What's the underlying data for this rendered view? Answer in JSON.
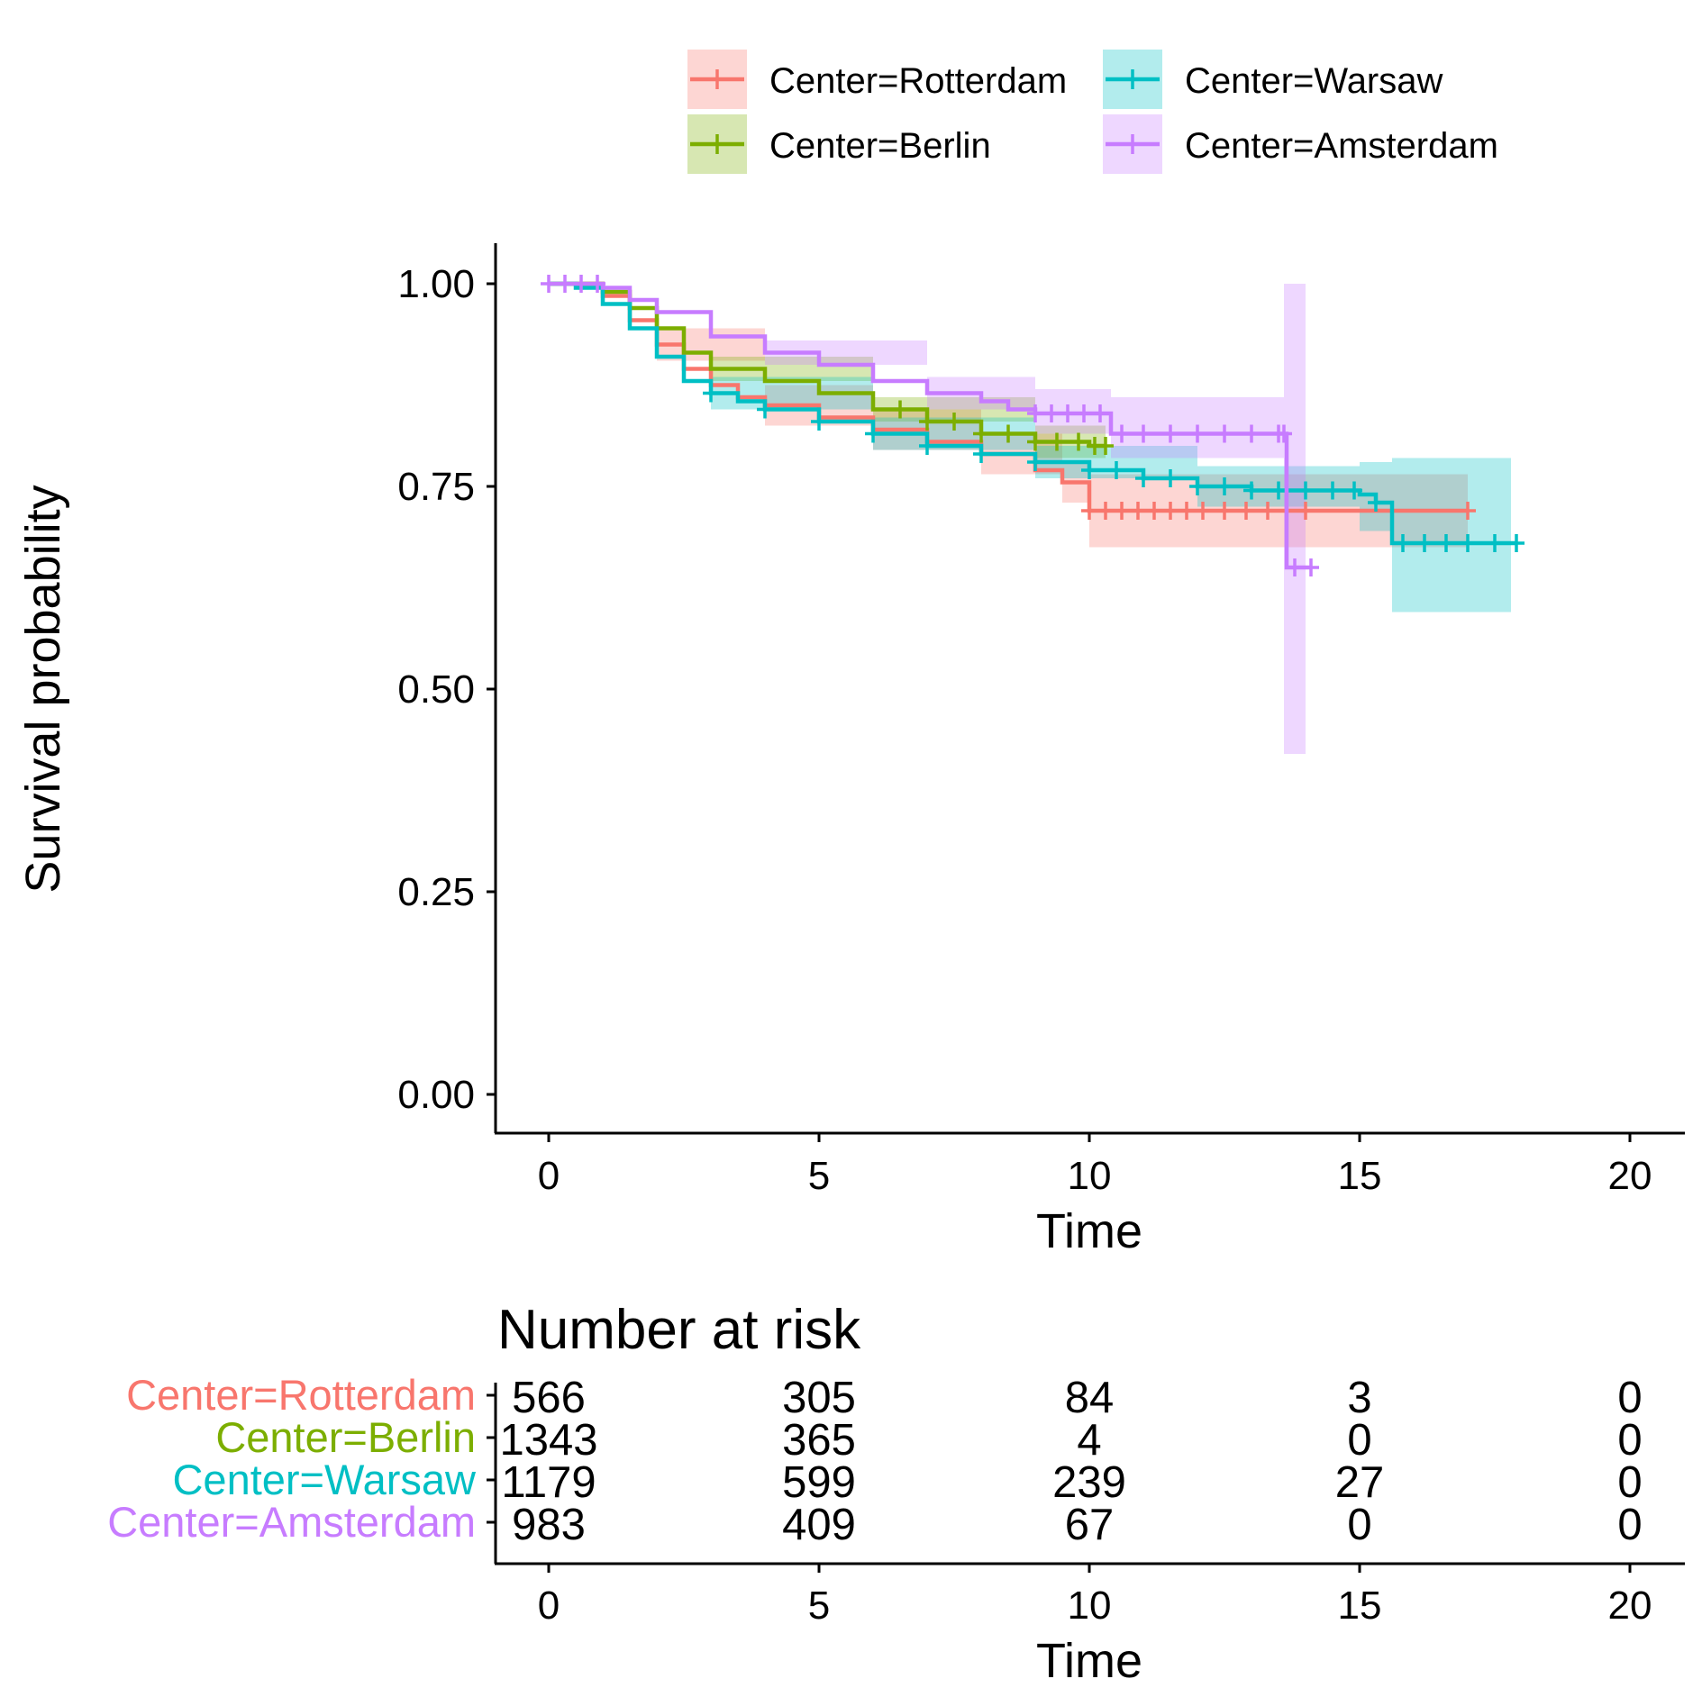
{
  "chart_data": [
    {
      "type": "line",
      "subtype": "kaplan-meier-step",
      "xlabel": "Time",
      "ylabel": "Survival probability",
      "xlim": [
        0,
        20
      ],
      "ylim": [
        0,
        1
      ],
      "x_ticks": [
        "0",
        "5",
        "10",
        "15",
        "20"
      ],
      "y_ticks": [
        "0.00",
        "0.25",
        "0.50",
        "0.75",
        "1.00"
      ],
      "grid": false,
      "legend": {
        "placement": "top",
        "entries": [
          "Center=Rotterdam",
          "Center=Warsaw",
          "Center=Berlin",
          "Center=Amsterdam"
        ]
      },
      "series": [
        {
          "name": "Center=Rotterdam",
          "color": "#F8766D",
          "points": [
            [
              0,
              1.0
            ],
            [
              0.5,
              1.0
            ],
            [
              1.0,
              0.985
            ],
            [
              1.5,
              0.955
            ],
            [
              2.0,
              0.925
            ],
            [
              2.5,
              0.895
            ],
            [
              3.0,
              0.875
            ],
            [
              3.5,
              0.86
            ],
            [
              4.0,
              0.85
            ],
            [
              5.0,
              0.835
            ],
            [
              6.0,
              0.82
            ],
            [
              7.0,
              0.805
            ],
            [
              8.0,
              0.79
            ],
            [
              9.0,
              0.77
            ],
            [
              9.5,
              0.755
            ],
            [
              10.0,
              0.72
            ],
            [
              11.0,
              0.72
            ],
            [
              13.0,
              0.72
            ],
            [
              15.0,
              0.72
            ],
            [
              17.0,
              0.72
            ]
          ],
          "ci_lower": [
            [
              0,
              1.0
            ],
            [
              2.0,
              0.905
            ],
            [
              4.0,
              0.825
            ],
            [
              6.0,
              0.795
            ],
            [
              8.0,
              0.765
            ],
            [
              9.5,
              0.73
            ],
            [
              10.0,
              0.675
            ],
            [
              17.0,
              0.675
            ]
          ],
          "ci_upper": [
            [
              0,
              1.0
            ],
            [
              2.0,
              0.945
            ],
            [
              4.0,
              0.875
            ],
            [
              6.0,
              0.845
            ],
            [
              8.0,
              0.815
            ],
            [
              9.5,
              0.78
            ],
            [
              10.0,
              0.765
            ],
            [
              17.0,
              0.78
            ]
          ],
          "censor_marks": [
            10.0,
            10.3,
            10.6,
            10.9,
            11.2,
            11.5,
            11.8,
            12.1,
            12.5,
            12.9,
            13.3,
            14.0,
            17.0
          ]
        },
        {
          "name": "Center=Berlin",
          "color": "#7CAE00",
          "points": [
            [
              0,
              1.0
            ],
            [
              0.5,
              1.0
            ],
            [
              1.0,
              0.99
            ],
            [
              1.5,
              0.97
            ],
            [
              2.0,
              0.945
            ],
            [
              2.5,
              0.915
            ],
            [
              3.0,
              0.895
            ],
            [
              4.0,
              0.88
            ],
            [
              5.0,
              0.865
            ],
            [
              6.0,
              0.845
            ],
            [
              7.0,
              0.83
            ],
            [
              8.0,
              0.815
            ],
            [
              9.0,
              0.805
            ],
            [
              10.0,
              0.8
            ],
            [
              10.3,
              0.8
            ]
          ],
          "ci_lower": [
            [
              0,
              1.0
            ],
            [
              3.0,
              0.88
            ],
            [
              6.0,
              0.83
            ],
            [
              9.0,
              0.785
            ],
            [
              10.3,
              0.775
            ]
          ],
          "ci_upper": [
            [
              0,
              1.0
            ],
            [
              3.0,
              0.91
            ],
            [
              6.0,
              0.86
            ],
            [
              9.0,
              0.825
            ],
            [
              10.3,
              0.825
            ]
          ],
          "censor_marks": [
            6.5,
            7.0,
            7.5,
            8.0,
            8.5,
            9.0,
            9.4,
            9.8,
            10.1,
            10.3
          ]
        },
        {
          "name": "Center=Warsaw",
          "color": "#00BFC4",
          "points": [
            [
              0,
              1.0
            ],
            [
              0.5,
              0.995
            ],
            [
              1.0,
              0.975
            ],
            [
              1.5,
              0.945
            ],
            [
              2.0,
              0.91
            ],
            [
              2.5,
              0.88
            ],
            [
              3.0,
              0.865
            ],
            [
              3.5,
              0.855
            ],
            [
              4.0,
              0.845
            ],
            [
              5.0,
              0.83
            ],
            [
              6.0,
              0.815
            ],
            [
              7.0,
              0.8
            ],
            [
              8.0,
              0.79
            ],
            [
              9.0,
              0.78
            ],
            [
              10.0,
              0.77
            ],
            [
              11.0,
              0.76
            ],
            [
              12.0,
              0.75
            ],
            [
              13.0,
              0.745
            ],
            [
              14.0,
              0.745
            ],
            [
              15.0,
              0.74
            ],
            [
              15.3,
              0.73
            ],
            [
              15.6,
              0.68
            ],
            [
              17.9,
              0.68
            ]
          ],
          "ci_lower": [
            [
              0,
              1.0
            ],
            [
              3.0,
              0.845
            ],
            [
              6.0,
              0.795
            ],
            [
              9.0,
              0.76
            ],
            [
              12.0,
              0.725
            ],
            [
              15.0,
              0.695
            ],
            [
              15.6,
              0.595
            ],
            [
              17.8,
              0.595
            ]
          ],
          "ci_upper": [
            [
              0,
              1.0
            ],
            [
              3.0,
              0.885
            ],
            [
              6.0,
              0.835
            ],
            [
              9.0,
              0.8
            ],
            [
              12.0,
              0.775
            ],
            [
              15.0,
              0.78
            ],
            [
              15.6,
              0.785
            ],
            [
              17.8,
              0.785
            ]
          ],
          "censor_marks": [
            3.0,
            4.0,
            5.0,
            6.0,
            7.0,
            8.0,
            9.0,
            10.0,
            10.5,
            11.0,
            11.5,
            12.0,
            12.5,
            13.0,
            13.5,
            14.0,
            14.5,
            14.9,
            15.3,
            15.8,
            16.2,
            16.6,
            17.0,
            17.5,
            17.9
          ]
        },
        {
          "name": "Center=Amsterdam",
          "color": "#C77CFF",
          "points": [
            [
              0,
              1.0
            ],
            [
              0.5,
              1.0
            ],
            [
              1.0,
              0.995
            ],
            [
              1.5,
              0.98
            ],
            [
              2.0,
              0.965
            ],
            [
              3.0,
              0.935
            ],
            [
              4.0,
              0.915
            ],
            [
              5.0,
              0.9
            ],
            [
              6.0,
              0.88
            ],
            [
              7.0,
              0.865
            ],
            [
              8.0,
              0.855
            ],
            [
              8.5,
              0.845
            ],
            [
              9.0,
              0.84
            ],
            [
              10.0,
              0.84
            ],
            [
              10.4,
              0.815
            ],
            [
              13.6,
              0.815
            ],
            [
              13.65,
              0.65
            ],
            [
              14.1,
              0.65
            ]
          ],
          "ci_lower": [
            [
              0,
              1.0
            ],
            [
              4.0,
              0.9
            ],
            [
              7.0,
              0.845
            ],
            [
              9.0,
              0.815
            ],
            [
              10.4,
              0.785
            ],
            [
              13.6,
              0.76
            ],
            [
              13.6,
              0.42
            ],
            [
              14.0,
              0.42
            ]
          ],
          "ci_upper": [
            [
              0,
              1.0
            ],
            [
              4.0,
              0.93
            ],
            [
              7.0,
              0.885
            ],
            [
              9.0,
              0.87
            ],
            [
              10.4,
              0.86
            ],
            [
              13.6,
              0.875
            ],
            [
              13.6,
              1.0
            ],
            [
              14.0,
              1.0
            ]
          ],
          "censor_marks": [
            0.0,
            0.3,
            0.6,
            0.9,
            9.0,
            9.3,
            9.6,
            9.9,
            10.2,
            10.6,
            11.0,
            11.5,
            12.0,
            12.5,
            13.0,
            13.5,
            13.6,
            13.8,
            14.1
          ]
        }
      ]
    },
    {
      "type": "table",
      "title": "Number at risk",
      "xlabel": "Time",
      "xlim": [
        0,
        20
      ],
      "x_ticks": [
        "0",
        "5",
        "10",
        "15",
        "20"
      ],
      "time_points": [
        0,
        5,
        10,
        15,
        20
      ],
      "rows": [
        {
          "label": "Center=Rotterdam",
          "color": "#F8766D",
          "values": [
            "566",
            "305",
            "84",
            "3",
            "0"
          ]
        },
        {
          "label": "Center=Berlin",
          "color": "#7CAE00",
          "values": [
            "1343",
            "365",
            "4",
            "0",
            "0"
          ]
        },
        {
          "label": "Center=Warsaw",
          "color": "#00BFC4",
          "values": [
            "1179",
            "599",
            "239",
            "27",
            "0"
          ]
        },
        {
          "label": "Center=Amsterdam",
          "color": "#C77CFF",
          "values": [
            "983",
            "409",
            "67",
            "0",
            "0"
          ]
        }
      ]
    }
  ]
}
